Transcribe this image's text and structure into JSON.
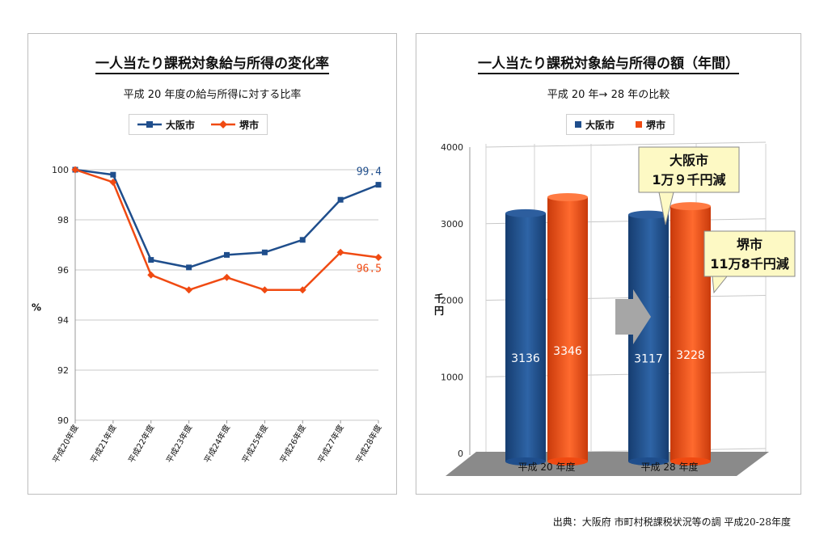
{
  "source": "出典：大阪府 市町村税課税状況等の調 平成20-28年度",
  "left_panel": {
    "title": "一人当たり課税対象給与所得の変化率",
    "subtitle": "平成 20 年度の給与所得に対する比率",
    "legend": [
      "大阪市",
      "堺市"
    ]
  },
  "right_panel": {
    "title": "一人当たり課税対象給与所得の額（年間）",
    "subtitle": "平成 20 年→ 28 年の比較",
    "legend": [
      "大阪市",
      "堺市"
    ],
    "callout_osaka_1": "大阪市",
    "callout_osaka_2": "1万９千円減",
    "callout_sakai_1": "堺市",
    "callout_sakai_2": "11万8千円減"
  },
  "chart_data": [
    {
      "type": "line",
      "title": "一人当たり課税対象給与所得の変化率",
      "subtitle": "平成 20 年度の給与所得に対する比率",
      "ylabel": "%",
      "xlabel": "",
      "ylim": [
        90,
        100
      ],
      "yticks": [
        90,
        92,
        94,
        96,
        98,
        100
      ],
      "grid": true,
      "legend_position": "top-center",
      "categories": [
        "平成20年度",
        "平成21年度",
        "平成22年度",
        "平成23年度",
        "平成24年度",
        "平成25年度",
        "平成26年度",
        "平成27年度",
        "平成28年度"
      ],
      "series": [
        {
          "name": "大阪市",
          "color": "#1f4e8c",
          "marker": "square",
          "values": [
            100,
            99.8,
            96.4,
            96.1,
            96.6,
            96.7,
            97.2,
            98.8,
            99.4
          ],
          "end_label": "99.4"
        },
        {
          "name": "堺市",
          "color": "#f04a12",
          "marker": "diamond",
          "values": [
            100,
            99.5,
            95.8,
            95.2,
            95.7,
            95.2,
            95.2,
            96.7,
            96.5
          ],
          "end_label": "96.5"
        }
      ]
    },
    {
      "type": "bar",
      "title": "一人当たり課税対象給与所得の額（年間）",
      "subtitle": "平成 20 年→ 28 年の比較",
      "ylabel": "千円",
      "xlabel": "",
      "ylim": [
        0,
        4000
      ],
      "yticks": [
        0,
        1000,
        2000,
        3000,
        4000
      ],
      "grid": true,
      "legend_position": "top-center",
      "categories": [
        "平成 20 年度",
        "平成 28 年度"
      ],
      "series": [
        {
          "name": "大阪市",
          "color": "#1f4e8c",
          "values": [
            3136,
            3117
          ]
        },
        {
          "name": "堺市",
          "color": "#f04a12",
          "values": [
            3346,
            3228
          ]
        }
      ]
    }
  ]
}
